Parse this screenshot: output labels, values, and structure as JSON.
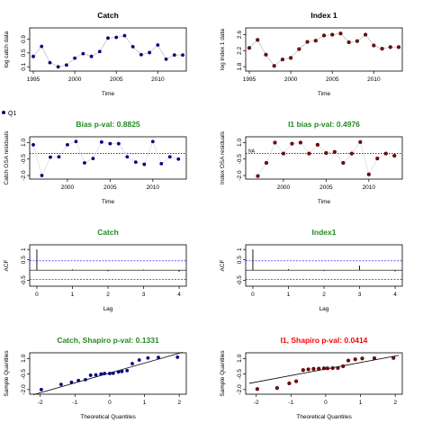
{
  "colors": {
    "title_black": "#000000",
    "title_green": "#228B22",
    "title_red": "#FF0000",
    "point_blue": "#000080",
    "point_red": "#8B0000",
    "ref_blue": "#0000FF"
  },
  "legend_label": "Q1",
  "chart_data": [
    {
      "type": "line",
      "title": "Catch",
      "title_color": "black",
      "xlabel": "Time",
      "ylabel": "log catch data",
      "xlim": [
        1995,
        2013
      ],
      "ylim": [
        0.08,
        1.12
      ],
      "xticks": [
        1995,
        2000,
        2005,
        2010
      ],
      "yticks": [
        0.1,
        0.5,
        0.9
      ],
      "yticklabels": [
        "0.1",
        "0.5",
        "0.9"
      ],
      "point_color": "blue",
      "x": [
        1995,
        1996,
        1997,
        1998,
        1999,
        2000,
        2001,
        2002,
        2003,
        2004,
        2005,
        2006,
        2007,
        2008,
        2009,
        2010,
        2011,
        2012,
        2013
      ],
      "y": [
        0.4,
        0.69,
        0.22,
        0.1,
        0.15,
        0.35,
        0.48,
        0.4,
        0.54,
        0.93,
        0.95,
        1.0,
        0.68,
        0.45,
        0.51,
        0.73,
        0.32,
        0.44,
        0.44
      ]
    },
    {
      "type": "line",
      "title": "Index 1",
      "title_color": "black",
      "xlabel": "Time",
      "ylabel": "log index 1 data",
      "xlim": [
        1995,
        2013
      ],
      "ylim": [
        1.78,
        2.68
      ],
      "xticks": [
        1995,
        2000,
        2005,
        2010
      ],
      "yticks": [
        1.8,
        2.2,
        2.6
      ],
      "yticklabels": [
        "1.8",
        "2.2",
        "2.6"
      ],
      "point_color": "red",
      "x": [
        1995,
        1996,
        1997,
        1998,
        1999,
        2000,
        2001,
        2002,
        2003,
        2004,
        2005,
        2006,
        2007,
        2008,
        2009,
        2010,
        2011,
        2012,
        2013
      ],
      "y": [
        2.27,
        2.47,
        2.1,
        1.82,
        1.98,
        2.02,
        2.24,
        2.42,
        2.45,
        2.58,
        2.6,
        2.63,
        2.41,
        2.44,
        2.6,
        2.33,
        2.25,
        2.29,
        2.29
      ]
    },
    {
      "type": "scatter",
      "title": "Bias p-val: 0.8825",
      "title_color": "green",
      "xlabel": "Time",
      "ylabel": "Catch OSA residuals",
      "xlim": [
        1996,
        2013.5
      ],
      "ylim": [
        -2.0,
        1.2
      ],
      "xticks": [
        2000,
        2005,
        2010
      ],
      "yticks": [
        -2.0,
        -0.5,
        1.0
      ],
      "yticklabels": [
        "-2.0",
        "-0.5",
        "1.0"
      ],
      "point_color": "blue",
      "zero_line": true,
      "x": [
        1996,
        1997,
        1998,
        1999,
        2000,
        2001,
        2002,
        2003,
        2004,
        2005,
        2006,
        2007,
        2008,
        2009,
        2010,
        2011,
        2012,
        2013
      ],
      "y": [
        0.8,
        -2.0,
        -0.33,
        -0.3,
        0.8,
        1.1,
        -0.85,
        -0.45,
        1.05,
        0.9,
        0.9,
        -0.3,
        -0.78,
        -0.98,
        1.1,
        -0.92,
        -0.3,
        -0.5
      ]
    },
    {
      "type": "scatter",
      "title": "I1 bias p-val: 0.4976",
      "title_color": "green",
      "xlabel": "Time",
      "ylabel": "Index OSA residuals",
      "xlim": [
        1996,
        2013.5
      ],
      "ylim": [
        -2.0,
        1.2
      ],
      "xticks": [
        2000,
        2005,
        2010
      ],
      "yticks": [
        -2.0,
        -0.5,
        1.0
      ],
      "yticklabels": [
        "-2.0",
        "-0.5",
        "1.0"
      ],
      "point_color": "red",
      "zero_line": true,
      "annotation": "NA",
      "x": [
        1997,
        1998,
        1999,
        2000,
        2001,
        2002,
        2003,
        2004,
        2005,
        2006,
        2007,
        2008,
        2009,
        2010,
        2011,
        2012,
        2013
      ],
      "y": [
        -2.05,
        -0.85,
        1.0,
        0.0,
        0.9,
        1.0,
        0.0,
        0.8,
        0.05,
        0.15,
        -0.85,
        0.0,
        1.05,
        -1.9,
        -0.45,
        0.0,
        -0.2
      ]
    },
    {
      "type": "bar",
      "title": "Catch",
      "title_color": "green",
      "xlabel": "Lag",
      "ylabel": "ACF",
      "xlim": [
        -0.1,
        4.1
      ],
      "ylim": [
        -0.6,
        1.05
      ],
      "xticks": [
        0,
        1,
        2,
        3,
        4
      ],
      "yticks": [
        -0.5,
        0.5,
        1.0
      ],
      "yticklabels": [
        "-0.5",
        "0.5",
        "1"
      ],
      "ci": 0.45,
      "lags": [
        0,
        1,
        2,
        3,
        4
      ],
      "acf": [
        1.0,
        0.04,
        -0.05,
        0.03,
        -0.08
      ]
    },
    {
      "type": "bar",
      "title": "Index1",
      "title_color": "green",
      "xlabel": "Lag",
      "ylabel": "ACF",
      "xlim": [
        -0.1,
        4.1
      ],
      "ylim": [
        -0.6,
        1.05
      ],
      "xticks": [
        0,
        1,
        2,
        3,
        4
      ],
      "yticks": [
        -0.5,
        0.5,
        1.0
      ],
      "yticklabels": [
        "-0.5",
        "0.5",
        "1"
      ],
      "ci": 0.45,
      "lags": [
        0,
        1,
        2,
        3,
        4
      ],
      "acf": [
        1.0,
        0.05,
        -0.04,
        0.22,
        -0.06
      ]
    },
    {
      "type": "scatter",
      "title": "Catch, Shapiro p-val: 0.1331",
      "title_color": "green",
      "xlabel": "Theoretical Quantiles",
      "ylabel": "Sample Quantiles",
      "xlim": [
        -2.2,
        2.1
      ],
      "ylim": [
        -2.1,
        1.2
      ],
      "xticks": [
        -2,
        -1,
        0,
        1,
        2
      ],
      "yticks": [
        -2.0,
        -0.5,
        1.0
      ],
      "yticklabels": [
        "-2.0",
        "-0.5",
        "1.0"
      ],
      "point_color": "blue",
      "ref_line": [
        [
          -2.2,
          -2.5
        ],
        [
          2.1,
          1.6
        ]
      ],
      "x": [
        -1.97,
        -1.4,
        -1.1,
        -0.9,
        -0.7,
        -0.55,
        -0.4,
        -0.25,
        -0.15,
        0.0,
        0.1,
        0.25,
        0.35,
        0.5,
        0.65,
        0.85,
        1.1,
        1.4,
        1.95
      ],
      "y": [
        -2.0,
        -1.5,
        -1.3,
        -1.12,
        -1.05,
        -0.62,
        -0.58,
        -0.5,
        -0.45,
        -0.45,
        -0.43,
        -0.3,
        -0.25,
        -0.17,
        0.5,
        0.85,
        1.05,
        1.1,
        1.12
      ]
    },
    {
      "type": "scatter",
      "title": "I1, Shapiro p-val: 0.0414",
      "title_color": "red",
      "xlabel": "Theoretical Quantiles",
      "ylabel": "Sample Quantiles",
      "xlim": [
        -2.2,
        2.1
      ],
      "ylim": [
        -2.1,
        1.2
      ],
      "xticks": [
        -2,
        -1,
        0,
        1,
        2
      ],
      "yticks": [
        -2.0,
        -0.5,
        1.0
      ],
      "yticklabels": [
        "-2.0",
        "-0.5",
        "1.0"
      ],
      "point_color": "red",
      "ref_line": [
        [
          -2.2,
          -1.4
        ],
        [
          2.1,
          1.3
        ]
      ],
      "x": [
        -1.97,
        -1.4,
        -1.05,
        -0.85,
        -0.65,
        -0.5,
        -0.35,
        -0.2,
        -0.05,
        0.05,
        0.2,
        0.35,
        0.5,
        0.65,
        0.85,
        1.05,
        1.4,
        1.95
      ],
      "y": [
        -1.95,
        -1.85,
        -1.4,
        -1.2,
        -0.12,
        -0.05,
        0.0,
        0.02,
        0.05,
        0.05,
        0.07,
        0.08,
        0.25,
        0.8,
        0.92,
        1.0,
        1.02,
        1.05
      ]
    }
  ]
}
